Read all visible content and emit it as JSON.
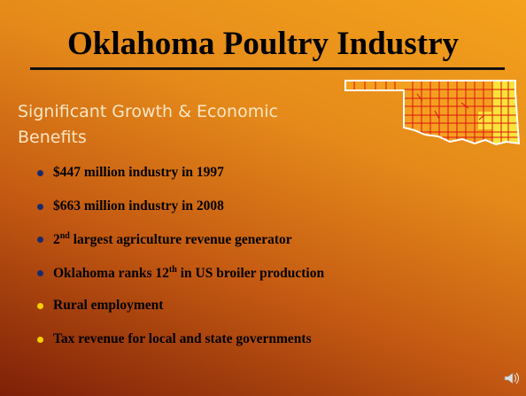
{
  "title": "Oklahoma Poultry Industry",
  "subtitle": [
    "Significant Growth & Economic",
    "Benefits"
  ],
  "bullets": [
    "$447 million industry in 1997",
    "$663 million industry in 2008",
    {
      "before": "2",
      "sup": "nd",
      "after": " largest agriculture revenue generator"
    },
    {
      "before": "Oklahoma ranks 12",
      "sup": "th",
      "after": " in US broiler production"
    },
    "Rural employment",
    "Tax revenue for local and state governments"
  ]
}
